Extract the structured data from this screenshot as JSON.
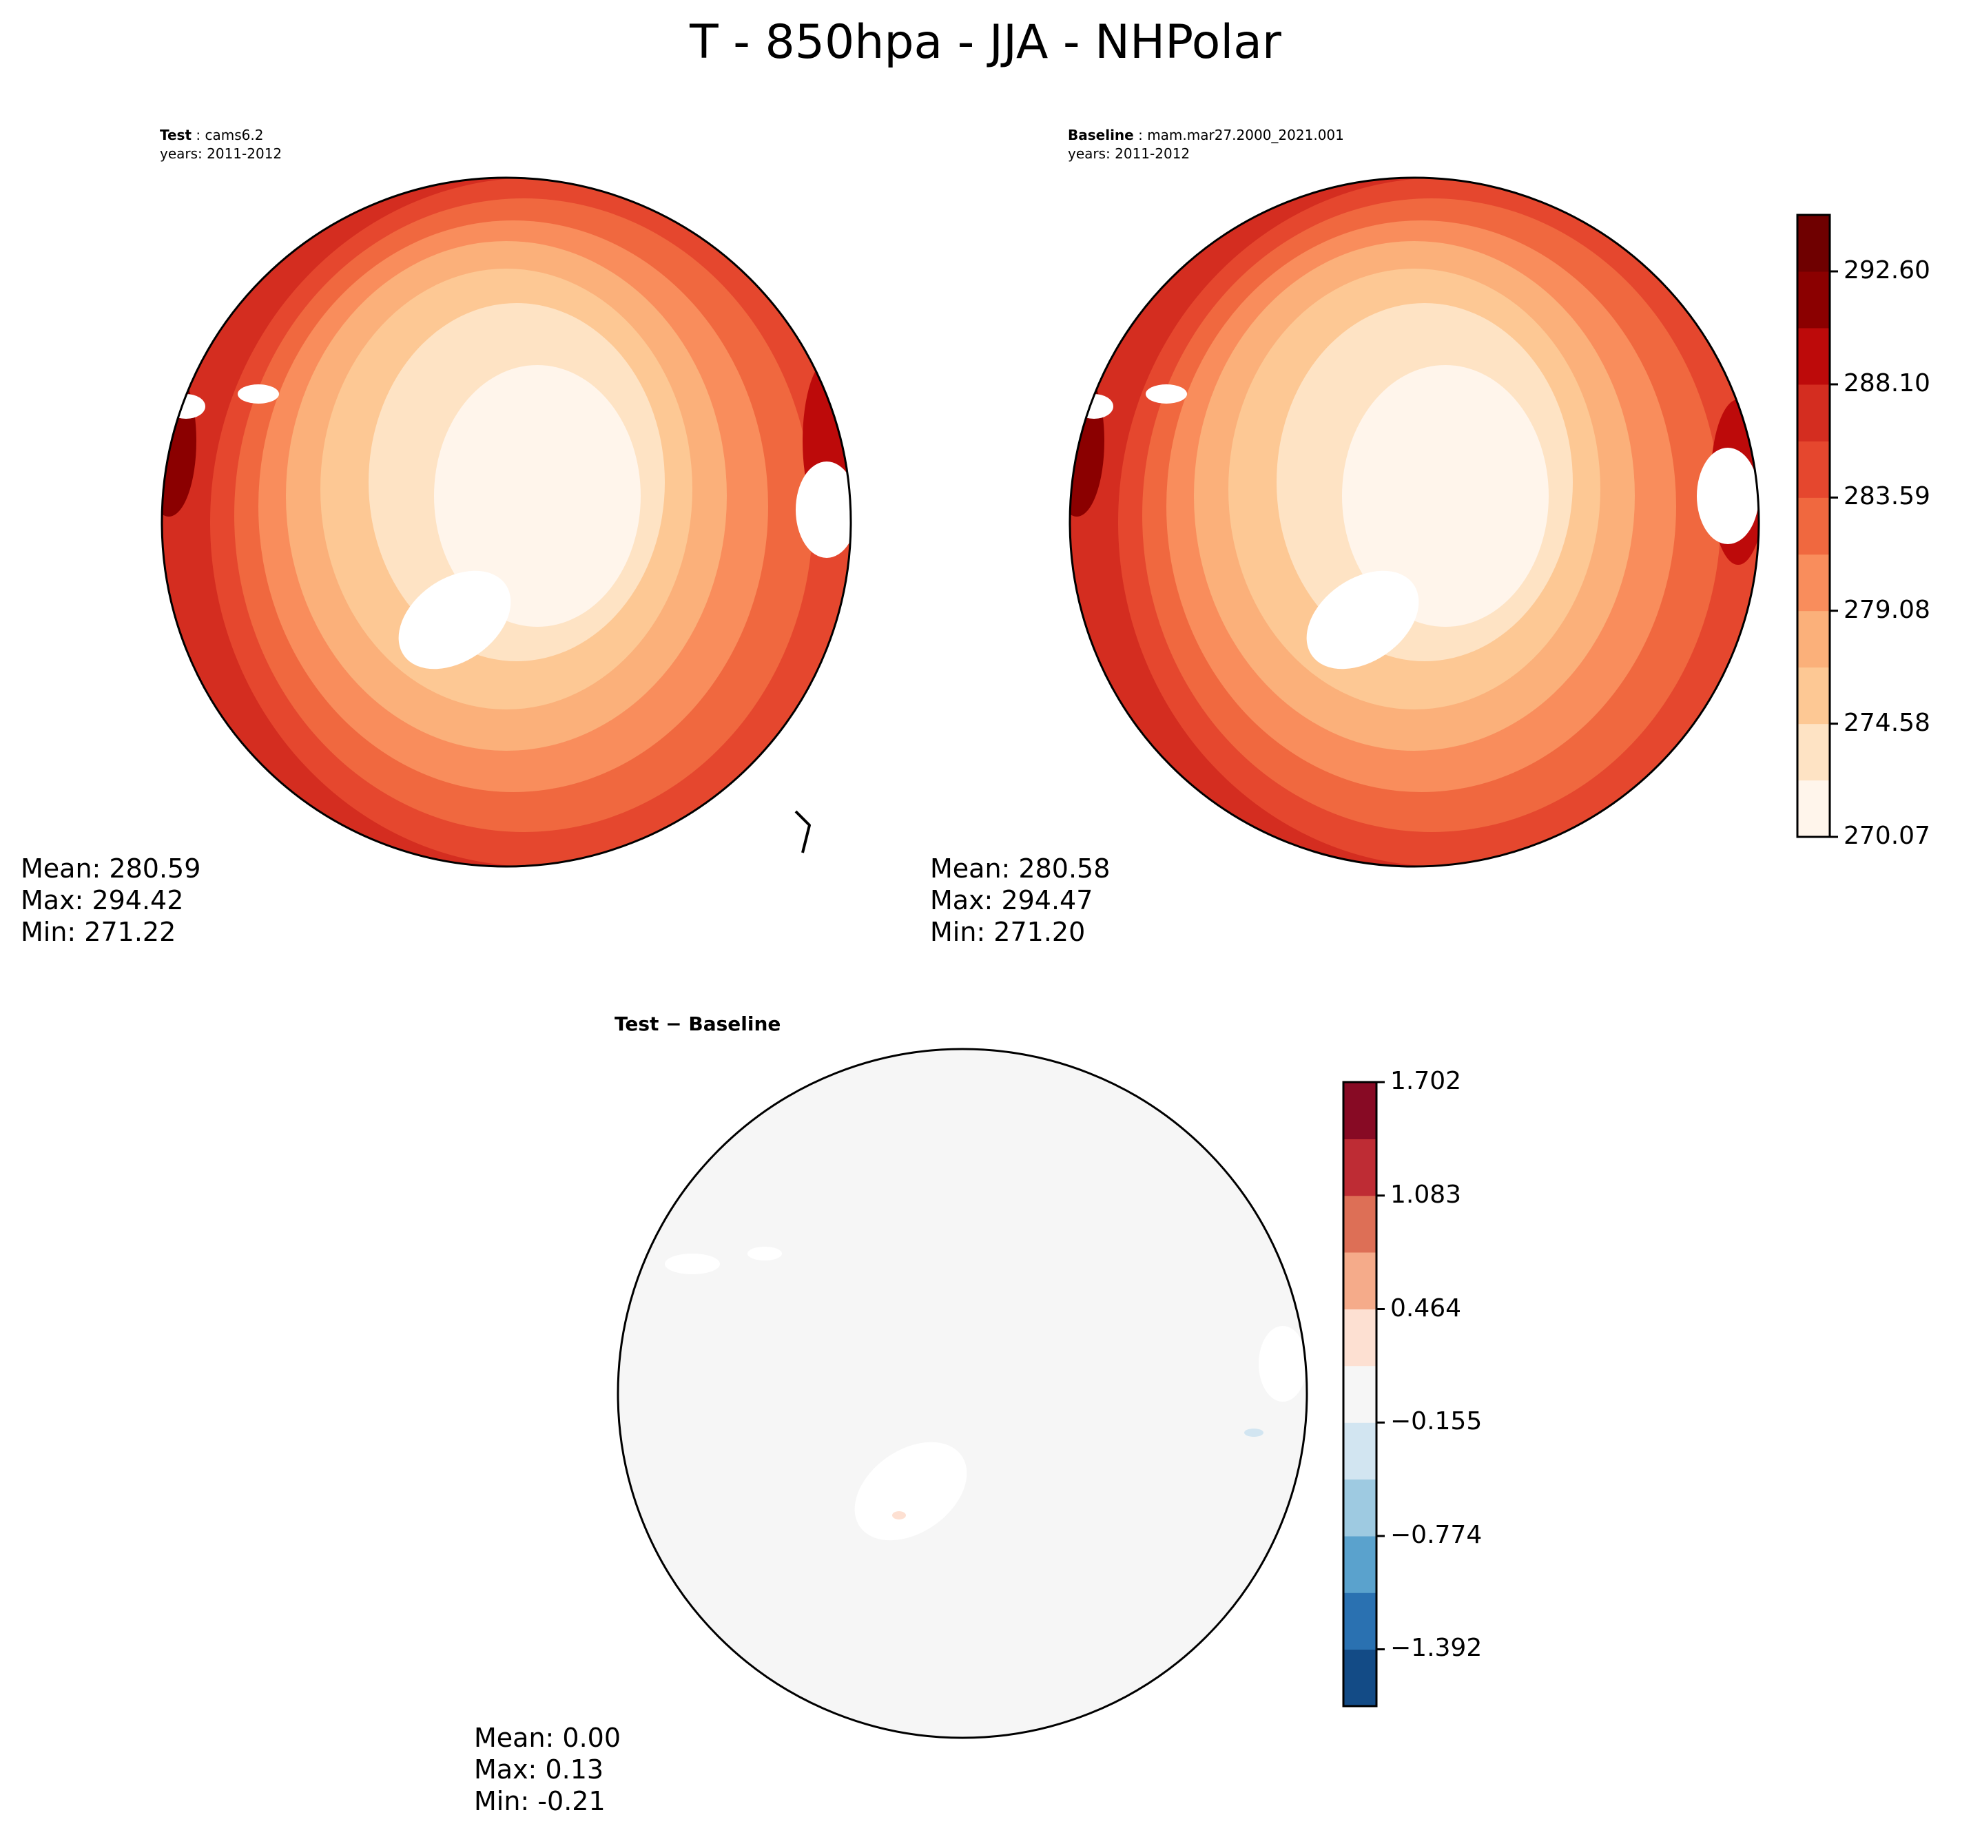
{
  "title": "T - 850hpa - JJA - NHPolar",
  "panels": {
    "test": {
      "label": "Test",
      "name": "cams6.2",
      "years": "years: 2011-2012",
      "mean": "Mean: 280.59",
      "max": "Max: 294.42",
      "min": "Min: 271.22"
    },
    "baseline": {
      "label": "Baseline",
      "name": "mam.mar27.2000_2021.001",
      "years": "years: 2011-2012",
      "mean": "Mean: 280.58",
      "max": "Max: 294.47",
      "min": "Min: 271.20"
    },
    "diff": {
      "title": "Test − Baseline",
      "mean": "Mean:  0.00",
      "max": "Max:  0.13",
      "min": "Min: -0.21"
    }
  },
  "chart_data": [
    {
      "type": "heatmap",
      "projection": "north-polar-stereographic",
      "variable": "T",
      "level": "850hpa",
      "season": "JJA",
      "region": "NHPolar",
      "panel": "test",
      "stats": {
        "mean": 280.59,
        "max": 294.42,
        "min": 271.22
      },
      "colormap": "OrRd",
      "colorbar": {
        "levels": [
          270.07,
          272.33,
          274.58,
          276.83,
          279.08,
          281.33,
          283.59,
          285.84,
          288.1,
          290.35,
          292.6,
          294.85
        ],
        "tick_labels": [
          "270.07",
          "274.58",
          "279.08",
          "283.59",
          "288.10",
          "292.60"
        ],
        "colors": [
          "#fff5eb",
          "#fee3c4",
          "#fdc894",
          "#fbb07a",
          "#f98d5c",
          "#f0683f",
          "#e5472e",
          "#d42d20",
          "#bd0a0a",
          "#8b0000",
          "#6f0000"
        ]
      }
    },
    {
      "type": "heatmap",
      "projection": "north-polar-stereographic",
      "panel": "baseline",
      "stats": {
        "mean": 280.58,
        "max": 294.47,
        "min": 271.2
      }
    },
    {
      "type": "heatmap",
      "projection": "north-polar-stereographic",
      "panel": "difference",
      "stats": {
        "mean": 0.0,
        "max": 0.13,
        "min": -0.21
      },
      "colormap": "RdBu_r",
      "colorbar": {
        "levels": [
          -1.702,
          -1.392,
          -1.083,
          -0.774,
          -0.464,
          -0.155,
          0.155,
          0.464,
          0.774,
          1.083,
          1.392,
          1.702
        ],
        "tick_labels": [
          "−1.392",
          "−0.774",
          "−0.155",
          "0.464",
          "1.083",
          "1.702"
        ],
        "tick_values": [
          -1.392,
          -0.774,
          -0.155,
          0.464,
          1.083,
          1.702
        ],
        "colors": [
          "#134b86",
          "#2a71b1",
          "#5aa2cd",
          "#9ecae1",
          "#d2e5f1",
          "#f6f6f6",
          "#fde0d2",
          "#f5ab8a",
          "#dd6f56",
          "#be2c34",
          "#870a24"
        ]
      }
    }
  ]
}
